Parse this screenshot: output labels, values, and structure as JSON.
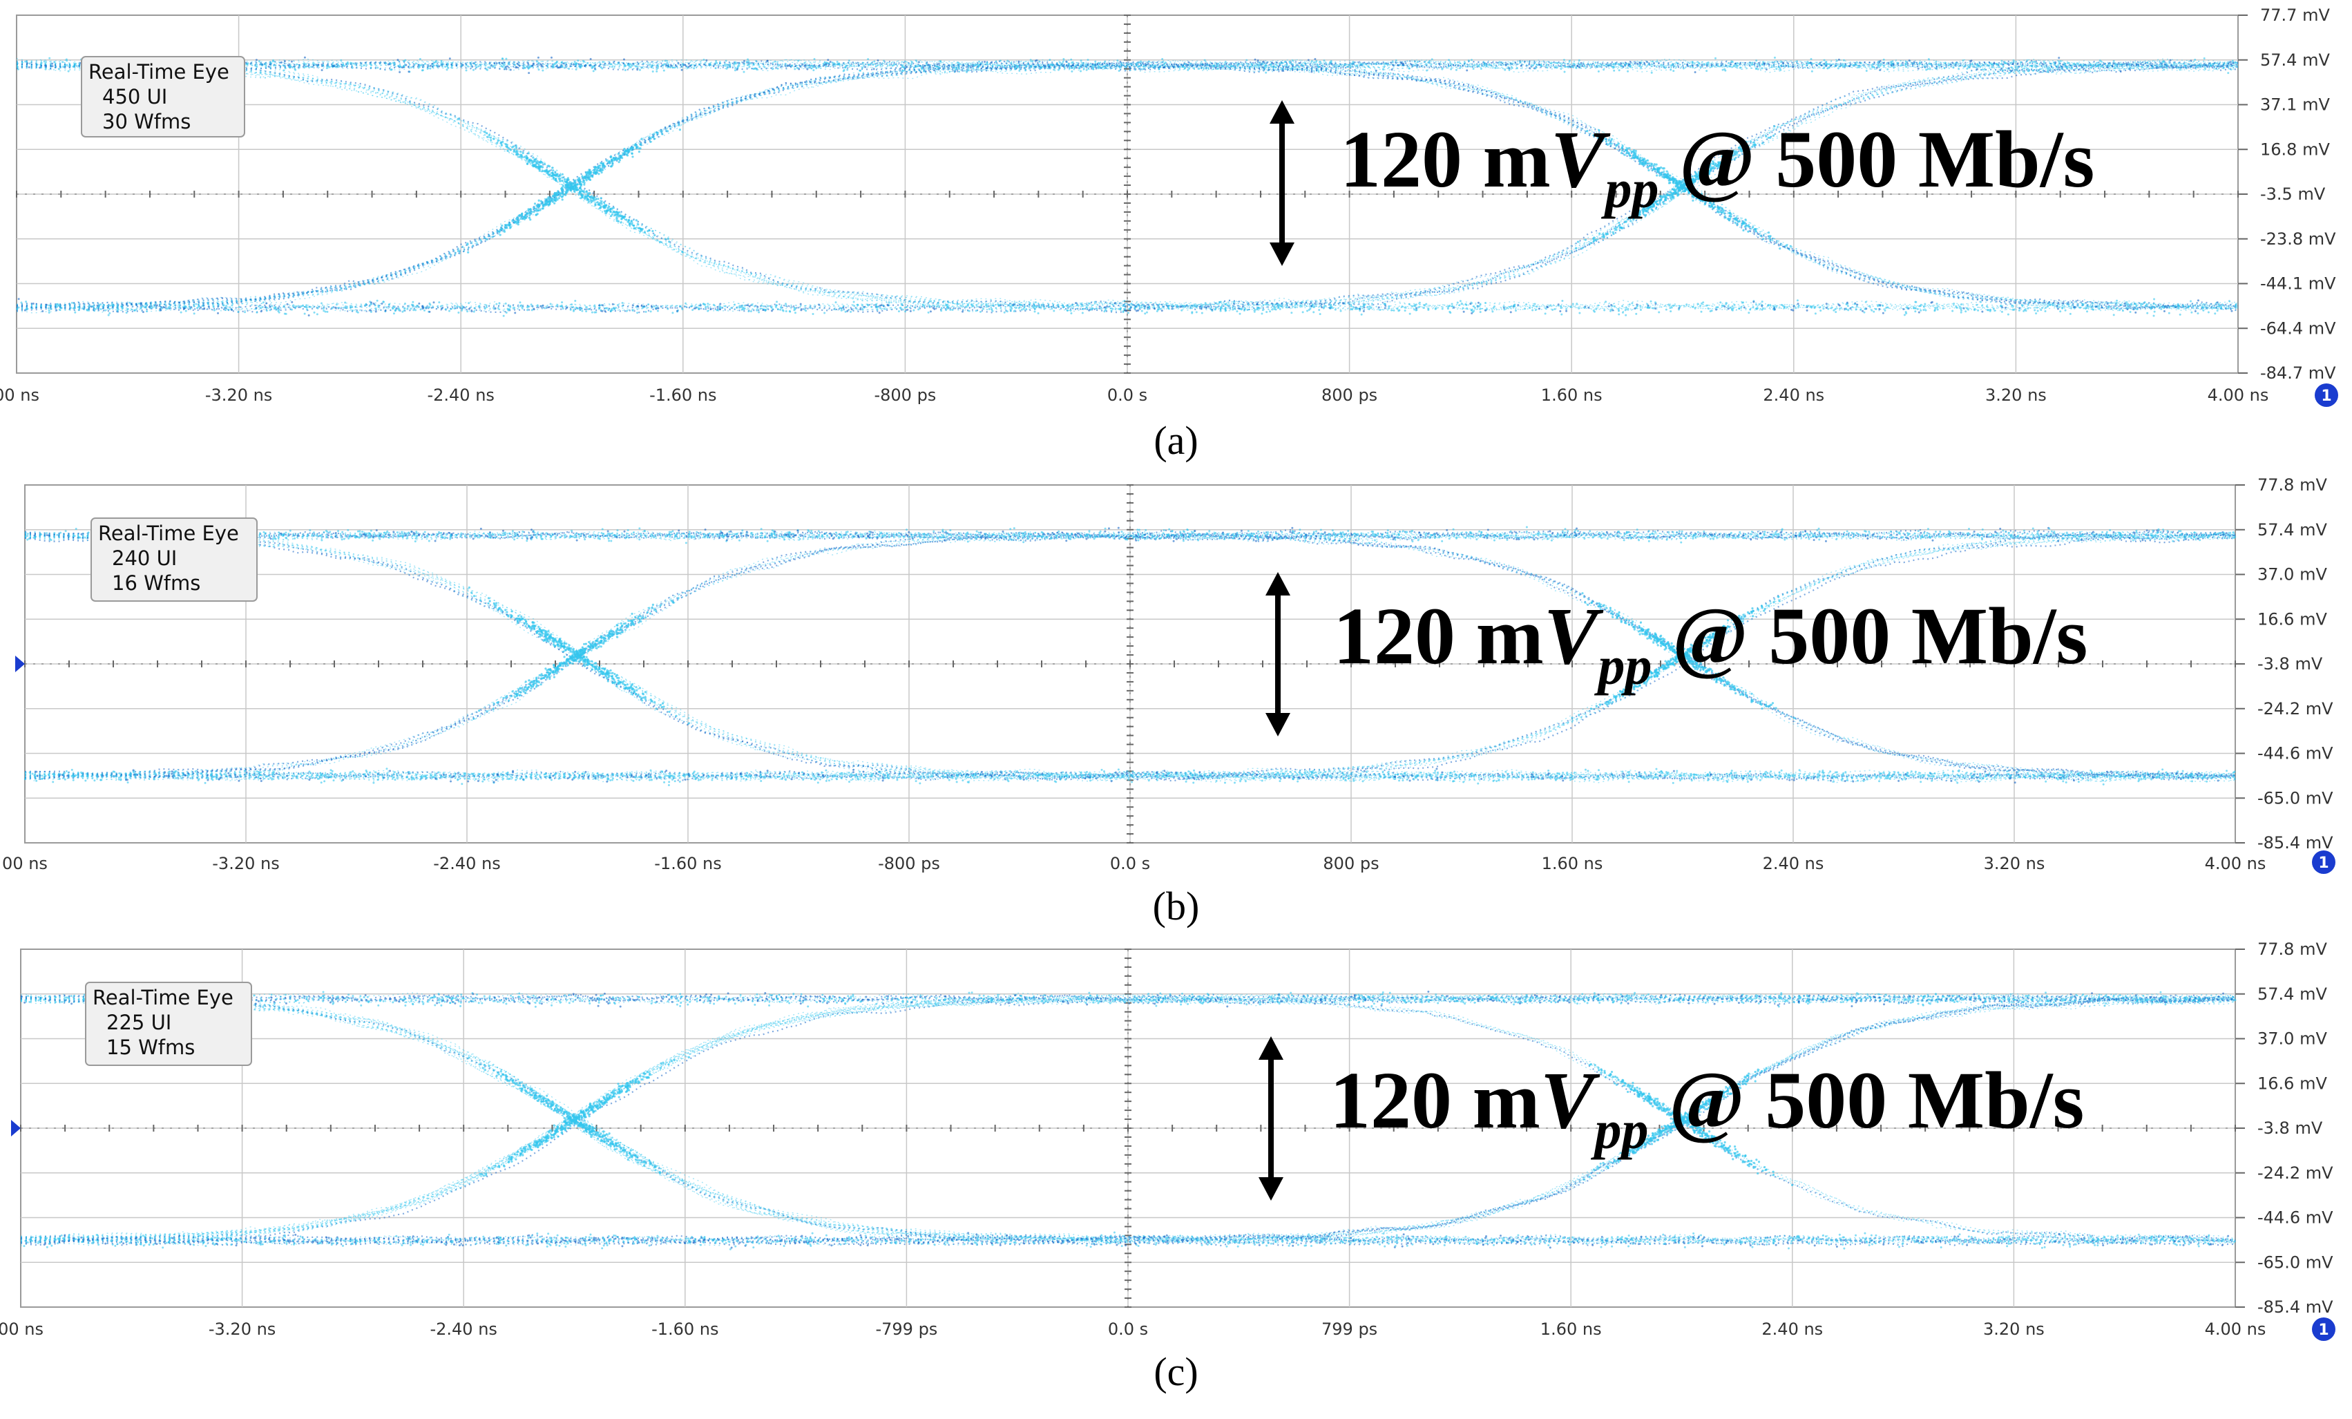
{
  "chart_data": [
    {
      "type": "scatter",
      "subtitle": "(a)",
      "legend_box": [
        "Real-Time Eye",
        "450 UI",
        "30 Wfms"
      ],
      "annotation": {
        "value": "120 mV",
        "italic_symbol": "V",
        "subscript": "pp",
        "rate": "@ 500 Mb/s"
      },
      "x_ticks": [
        "00 ns",
        "-3.20 ns",
        "-2.40 ns",
        "-1.60 ns",
        "-800 ps",
        "0.0 s",
        "800 ps",
        "1.60 ns",
        "2.40 ns",
        "3.20 ns",
        "4.00 ns"
      ],
      "y_ticks": [
        "77.7 mV",
        "57.4 mV",
        "37.1 mV",
        "16.8 mV",
        "-3.5 mV",
        "-23.8 mV",
        "-44.1 mV",
        "-64.4 mV",
        "-84.7 mV"
      ],
      "channel_badge": "1",
      "xlim": [
        -4.0,
        4.0
      ],
      "ylim": [
        -84.7,
        77.7
      ],
      "levels": {
        "high": 55,
        "low": -55
      },
      "crossings": [
        -2.0,
        2.0
      ],
      "grid": true
    },
    {
      "type": "scatter",
      "subtitle": "(b)",
      "legend_box": [
        "Real-Time Eye",
        "240 UI",
        "16 Wfms"
      ],
      "annotation": {
        "value": "120 mV",
        "italic_symbol": "V",
        "subscript": "pp",
        "rate": "@ 500 Mb/s"
      },
      "x_ticks": [
        "00 ns",
        "-3.20 ns",
        "-2.40 ns",
        "-1.60 ns",
        "-800 ps",
        "0.0 s",
        "800 ps",
        "1.60 ns",
        "2.40 ns",
        "3.20 ns",
        "4.00 ns"
      ],
      "y_ticks": [
        "77.8 mV",
        "57.4 mV",
        "37.0 mV",
        "16.6 mV",
        "-3.8 mV",
        "-24.2 mV",
        "-44.6 mV",
        "-65.0 mV",
        "-85.4 mV"
      ],
      "channel_badge": "1",
      "xlim": [
        -4.0,
        4.0
      ],
      "ylim": [
        -85.4,
        77.8
      ],
      "levels": {
        "high": 55,
        "low": -55
      },
      "crossings": [
        -2.0,
        2.0
      ],
      "grid": true
    },
    {
      "type": "scatter",
      "subtitle": "(c)",
      "legend_box": [
        "Real-Time Eye",
        "225 UI",
        "15 Wfms"
      ],
      "annotation": {
        "value": "120 mV",
        "italic_symbol": "V",
        "subscript": "pp",
        "rate": "@ 500 Mb/s"
      },
      "x_ticks": [
        "00 ns",
        "-3.20 ns",
        "-2.40 ns",
        "-1.60 ns",
        "-799 ps",
        "0.0 s",
        "799 ps",
        "1.60 ns",
        "2.40 ns",
        "3.20 ns",
        "4.00 ns"
      ],
      "y_ticks": [
        "77.8 mV",
        "57.4 mV",
        "37.0 mV",
        "16.6 mV",
        "-3.8 mV",
        "-24.2 mV",
        "-44.6 mV",
        "-65.0 mV",
        "-85.4 mV"
      ],
      "channel_badge": "1",
      "xlim": [
        -4.0,
        4.0
      ],
      "ylim": [
        -85.4,
        77.8
      ],
      "levels": {
        "high": 55,
        "low": -55
      },
      "crossings": [
        -2.0,
        2.0
      ],
      "grid": true
    }
  ],
  "colors": {
    "trace_light": "#33c6ee",
    "trace_dark": "#1565c6",
    "grid": "#c8c8c8",
    "arrow": "#000000",
    "axis_text": "#333333",
    "channel_badge": "#1a3ccf"
  }
}
